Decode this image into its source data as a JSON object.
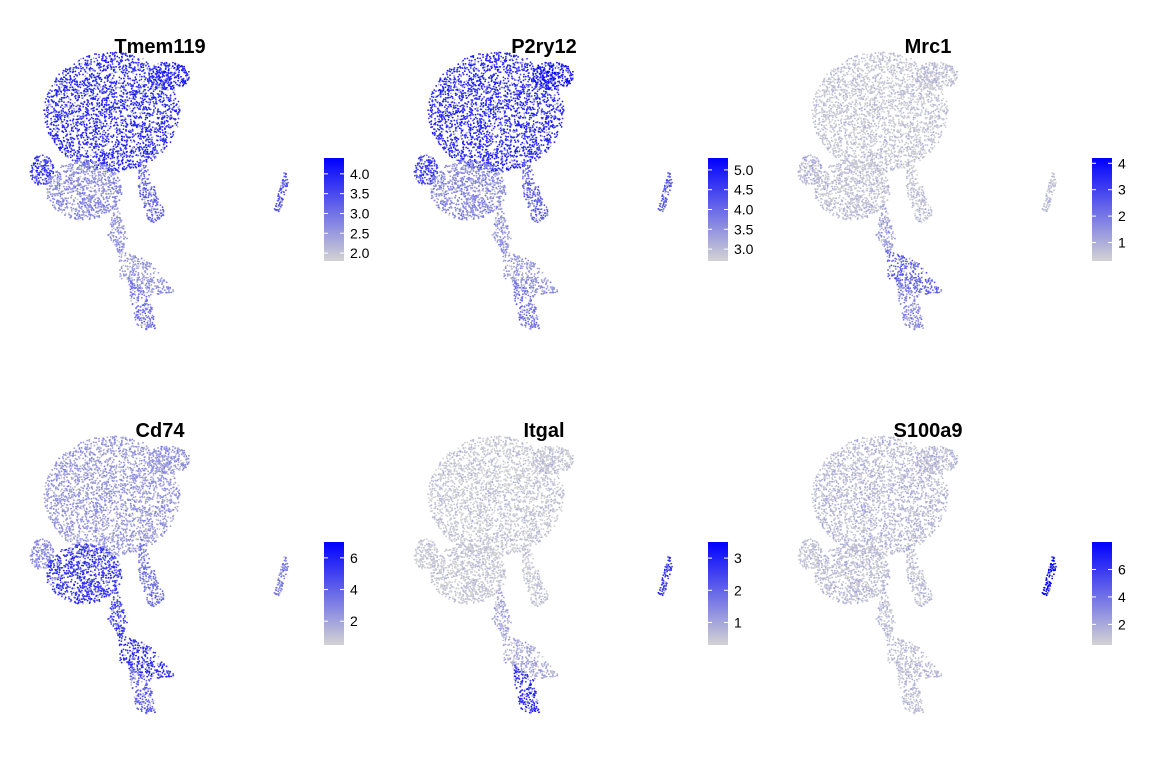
{
  "chart_data": [
    {
      "type": "scatter",
      "title": "Tmem119",
      "legend": {
        "placement": "right",
        "min": 1.8,
        "max": 4.4,
        "ticks": [
          "4.0",
          "3.5",
          "3.0",
          "2.5",
          "2.0"
        ],
        "tick_values": [
          4.0,
          3.5,
          3.0,
          2.5,
          2.0
        ]
      },
      "expression": {
        "main_lobe": 0.8,
        "lower_lobe": 0.35,
        "left_blob": 0.75,
        "top_right_blob": 0.85,
        "right_arm": 0.55,
        "stem": 0.3,
        "bottom_branch": 0.3,
        "bottom_tail": 0.45,
        "island": 0.6
      }
    },
    {
      "type": "scatter",
      "title": "P2ry12",
      "legend": {
        "placement": "right",
        "min": 2.7,
        "max": 5.3,
        "ticks": [
          "5.0",
          "4.5",
          "4.0",
          "3.5",
          "3.0"
        ],
        "tick_values": [
          5.0,
          4.5,
          4.0,
          3.5,
          3.0
        ]
      },
      "expression": {
        "main_lobe": 0.8,
        "lower_lobe": 0.35,
        "left_blob": 0.7,
        "top_right_blob": 0.9,
        "right_arm": 0.55,
        "stem": 0.3,
        "bottom_branch": 0.3,
        "bottom_tail": 0.45,
        "island": 0.6
      }
    },
    {
      "type": "scatter",
      "title": "Mrc1",
      "legend": {
        "placement": "right",
        "min": 0.3,
        "max": 4.2,
        "ticks": [
          "4",
          "3",
          "2",
          "1"
        ],
        "tick_values": [
          4,
          3,
          2,
          1
        ]
      },
      "expression": {
        "main_lobe": 0.06,
        "lower_lobe": 0.08,
        "left_blob": 0.15,
        "top_right_blob": 0.08,
        "right_arm": 0.08,
        "stem": 0.25,
        "bottom_branch": 0.55,
        "bottom_tail": 0.35,
        "island": 0.1
      }
    },
    {
      "type": "scatter",
      "title": "Cd74",
      "legend": {
        "placement": "right",
        "min": 0.5,
        "max": 7.0,
        "ticks": [
          "6",
          "4",
          "2"
        ],
        "tick_values": [
          6,
          4,
          2
        ]
      },
      "expression": {
        "main_lobe": 0.28,
        "lower_lobe": 0.75,
        "left_blob": 0.35,
        "top_right_blob": 0.3,
        "right_arm": 0.45,
        "stem": 0.7,
        "bottom_branch": 0.8,
        "bottom_tail": 0.55,
        "island": 0.4
      }
    },
    {
      "type": "scatter",
      "title": "Itgal",
      "legend": {
        "placement": "right",
        "min": 0.3,
        "max": 3.5,
        "ticks": [
          "3",
          "2",
          "1"
        ],
        "tick_values": [
          3,
          2,
          1
        ]
      },
      "expression": {
        "main_lobe": 0.05,
        "lower_lobe": 0.05,
        "left_blob": 0.05,
        "top_right_blob": 0.06,
        "right_arm": 0.06,
        "stem": 0.2,
        "bottom_branch": 0.2,
        "bottom_tail": 0.8,
        "island": 0.75
      }
    },
    {
      "type": "scatter",
      "title": "S100a9",
      "legend": {
        "placement": "right",
        "min": 0.5,
        "max": 8.0,
        "ticks": [
          "6",
          "4",
          "2"
        ],
        "tick_values": [
          6,
          4,
          2
        ]
      },
      "expression": {
        "main_lobe": 0.12,
        "lower_lobe": 0.1,
        "left_blob": 0.1,
        "top_right_blob": 0.12,
        "right_arm": 0.1,
        "stem": 0.1,
        "bottom_branch": 0.1,
        "bottom_tail": 0.1,
        "island": 0.98
      }
    }
  ],
  "colors": {
    "low": "#d3d3d3",
    "high": "#0000ff"
  }
}
